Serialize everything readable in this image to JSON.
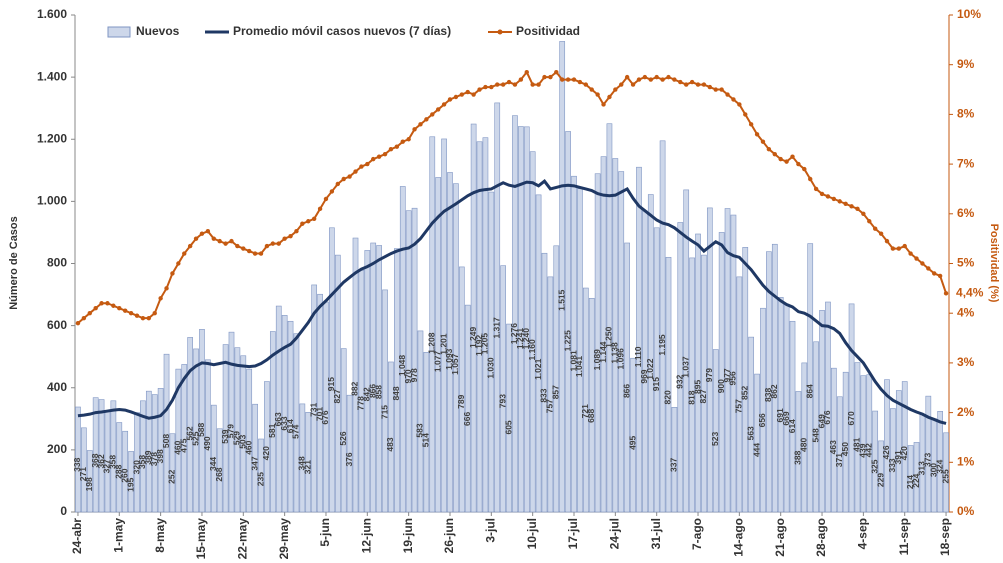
{
  "chart_data": {
    "type": "bar",
    "ylabel": "Número de Casos",
    "y2label": "Positividad (%)",
    "ylim": [
      0,
      1600
    ],
    "yticks": [
      0,
      200,
      400,
      600,
      800,
      {
        "value": 1000,
        "label": "1.000"
      },
      {
        "value": 1200,
        "label": "1.200"
      },
      {
        "value": 1400,
        "label": "1.400"
      },
      {
        "value": 1600,
        "label": "1.600"
      }
    ],
    "y2lim": [
      0,
      10
    ],
    "y2ticks": [
      {
        "value": 0,
        "label": "0%"
      },
      {
        "value": 1,
        "label": "1%"
      },
      {
        "value": 2,
        "label": "2%"
      },
      {
        "value": 3,
        "label": "3%"
      },
      {
        "value": 4,
        "label": "4%"
      },
      {
        "value": 5,
        "label": "5%"
      },
      {
        "value": 6,
        "label": "6%"
      },
      {
        "value": 7,
        "label": "7%"
      },
      {
        "value": 8,
        "label": "8%"
      },
      {
        "value": 9,
        "label": "9%"
      },
      {
        "value": 10,
        "label": "10%"
      }
    ],
    "grid": false,
    "categories": [
      "24-abr",
      null,
      null,
      null,
      null,
      null,
      null,
      "1-may",
      null,
      null,
      null,
      null,
      null,
      null,
      "8-may",
      null,
      null,
      null,
      null,
      null,
      null,
      "15-may",
      null,
      null,
      null,
      null,
      null,
      null,
      "22-may",
      null,
      null,
      null,
      null,
      null,
      null,
      "29-may",
      null,
      null,
      null,
      null,
      null,
      null,
      "5-jun",
      null,
      null,
      null,
      null,
      null,
      null,
      "12-jun",
      null,
      null,
      null,
      null,
      null,
      null,
      "19-jun",
      null,
      null,
      null,
      null,
      null,
      null,
      "26-jun",
      null,
      null,
      null,
      null,
      null,
      null,
      "3-jul",
      null,
      null,
      null,
      null,
      null,
      null,
      "10-jul",
      null,
      null,
      null,
      null,
      null,
      null,
      "17-jul",
      null,
      null,
      null,
      null,
      null,
      null,
      "24-jul",
      null,
      null,
      null,
      null,
      null,
      null,
      "31-jul",
      null,
      null,
      null,
      null,
      null,
      null,
      "7-ago",
      null,
      null,
      null,
      null,
      null,
      null,
      "14-ago",
      null,
      null,
      null,
      null,
      null,
      null,
      "21-ago",
      null,
      null,
      null,
      null,
      null,
      null,
      "28-ago",
      null,
      null,
      null,
      null,
      null,
      null,
      "4-sep",
      null,
      null,
      null,
      null,
      null,
      null,
      "11-sep",
      null,
      null,
      null,
      null,
      null,
      null,
      "18-sep"
    ],
    "series": [
      {
        "name": "Nuevos",
        "type": "bar",
        "color": "#cdd7ea",
        "stroke": "#7f95c3",
        "values": [
          338,
          271,
          198,
          368,
          362,
          327,
          358,
          288,
          260,
          195,
          320,
          358,
          389,
          378,
          398,
          508,
          252,
          460,
          475,
          562,
          525,
          588,
          490,
          344,
          268,
          539,
          579,
          529,
          503,
          460,
          347,
          235,
          420,
          581,
          663,
          633,
          614,
          574,
          348,
          321,
          731,
          701,
          676,
          915,
          827,
          526,
          376,
          882,
          778,
          842,
          866,
          858,
          715,
          483,
          848,
          1048,
          970,
          978,
          583,
          514,
          1208,
          1077,
          1201,
          1093,
          1057,
          789,
          666,
          1249,
          1192,
          1205,
          1030,
          1317,
          793,
          605,
          1276,
          1241,
          1240,
          1160,
          1021,
          833,
          757,
          857,
          1515,
          1225,
          1081,
          1041,
          721,
          688,
          1089,
          1144,
          1250,
          1138,
          1096,
          866,
          495,
          1110,
          969,
          1022,
          915,
          1195,
          820,
          337,
          932,
          1037,
          818,
          895,
          827,
          979,
          523,
          900,
          977,
          956,
          757,
          852,
          563,
          444,
          656,
          838,
          862,
          691,
          669,
          614,
          388,
          480,
          864,
          548,
          649,
          676,
          463,
          371,
          450,
          670,
          481,
          439,
          442,
          325,
          229,
          426,
          333,
          391,
          420,
          214,
          224,
          313,
          373,
          300,
          324,
          255
        ],
        "value_labels": [
          "338",
          "271",
          "198",
          "368",
          "362",
          "327",
          "358",
          "288",
          "260",
          "195",
          "320",
          "358",
          "389",
          "378",
          "398",
          "508",
          "252",
          "460",
          "475",
          "562",
          "525",
          "588",
          "490",
          "344",
          "268",
          "539",
          "579",
          "529",
          "503",
          "460",
          "347",
          "235",
          "420",
          "581",
          "663",
          "633",
          "614",
          "574",
          "348",
          "321",
          "731",
          "701",
          "676",
          "915",
          "827",
          "526",
          "376",
          "882",
          "778",
          "842",
          "866",
          "858",
          "715",
          "483",
          "848",
          "1.048",
          "970",
          "978",
          "583",
          "514",
          "1.208",
          "1.077",
          "1.201",
          "1.093",
          "1.057",
          "789",
          "666",
          "1.249",
          "1.192",
          "1.205",
          "1.030",
          "1.317",
          "793",
          "605",
          "1.276",
          "1.241",
          "1.240",
          "1.160",
          "1.021",
          "833",
          "757",
          "857",
          "1.515",
          "1.225",
          "1.081",
          "1.041",
          "721",
          "688",
          "1.089",
          "1.144",
          "1.250",
          "1.138",
          "1.096",
          "866",
          "495",
          "1.110",
          "969",
          "1.022",
          "915",
          "1.195",
          "820",
          "337",
          "932",
          "1.037",
          "818",
          "895",
          "827",
          "979",
          "523",
          "900",
          "977",
          "956",
          "757",
          "852",
          "563",
          "444",
          "656",
          "838",
          "862",
          "691",
          "669",
          "614",
          "388",
          "480",
          "864",
          "548",
          "649",
          "676",
          "463",
          "371",
          "450",
          "670",
          "481",
          "439",
          "442",
          "325",
          "229",
          "426",
          "333",
          "391",
          "420",
          "214",
          "224",
          "313",
          "373",
          "300",
          "324",
          "255"
        ]
      },
      {
        "name": "Promedio móvil casos nuevos (7 días)",
        "type": "line",
        "color": "#1f3864",
        "values": [
          310,
          312,
          315,
          320,
          322,
          325,
          328,
          330,
          328,
          322,
          315,
          308,
          302,
          305,
          310,
          330,
          360,
          400,
          430,
          455,
          470,
          480,
          478,
          474,
          478,
          482,
          476,
          472,
          470,
          468,
          470,
          478,
          490,
          505,
          518,
          530,
          540,
          560,
          585,
          610,
          640,
          662,
          680,
          700,
          720,
          740,
          755,
          770,
          782,
          790,
          800,
          812,
          822,
          832,
          840,
          846,
          850,
          862,
          880,
          905,
          930,
          950,
          968,
          980,
          992,
          1005,
          1018,
          1028,
          1035,
          1038,
          1040,
          1050,
          1060,
          1052,
          1048,
          1055,
          1062,
          1060,
          1050,
          1065,
          1040,
          1045,
          1050,
          1052,
          1050,
          1045,
          1040,
          1035,
          1025,
          1020,
          1018,
          1020,
          1030,
          1040,
          1010,
          985,
          970,
          955,
          940,
          930,
          925,
          915,
          900,
          885,
          872,
          860,
          840,
          855,
          870,
          860,
          835,
          825,
          820,
          800,
          780,
          755,
          730,
          710,
          695,
          680,
          668,
          660,
          645,
          640,
          630,
          615,
          600,
          598,
          590,
          575,
          545,
          520,
          500,
          480,
          450,
          420,
          395,
          375,
          360,
          350,
          340,
          330,
          322,
          315,
          305,
          298,
          290,
          285
        ]
      },
      {
        "name": "Positividad",
        "type": "line",
        "axis": "y2",
        "color": "#c55a11",
        "markers": true,
        "values": [
          3.8,
          3.9,
          4.0,
          4.1,
          4.2,
          4.2,
          4.15,
          4.1,
          4.05,
          4.0,
          3.95,
          3.9,
          3.9,
          4.0,
          4.3,
          4.5,
          4.8,
          5.0,
          5.2,
          5.35,
          5.5,
          5.6,
          5.65,
          5.5,
          5.45,
          5.4,
          5.45,
          5.35,
          5.3,
          5.25,
          5.2,
          5.2,
          5.35,
          5.4,
          5.4,
          5.5,
          5.55,
          5.65,
          5.8,
          5.85,
          5.9,
          6.1,
          6.3,
          6.45,
          6.6,
          6.7,
          6.75,
          6.85,
          6.95,
          7.0,
          7.1,
          7.15,
          7.2,
          7.3,
          7.35,
          7.45,
          7.5,
          7.7,
          7.8,
          7.9,
          8.0,
          8.1,
          8.2,
          8.3,
          8.35,
          8.4,
          8.45,
          8.4,
          8.5,
          8.55,
          8.55,
          8.6,
          8.6,
          8.65,
          8.6,
          8.7,
          8.85,
          8.6,
          8.6,
          8.75,
          8.75,
          8.85,
          8.7,
          8.7,
          8.7,
          8.65,
          8.6,
          8.5,
          8.4,
          8.2,
          8.35,
          8.5,
          8.6,
          8.75,
          8.6,
          8.7,
          8.75,
          8.7,
          8.75,
          8.7,
          8.75,
          8.7,
          8.65,
          8.6,
          8.65,
          8.6,
          8.6,
          8.55,
          8.5,
          8.5,
          8.4,
          8.3,
          8.2,
          8.0,
          7.8,
          7.6,
          7.45,
          7.3,
          7.2,
          7.1,
          7.05,
          7.15,
          7.0,
          6.9,
          6.7,
          6.5,
          6.4,
          6.35,
          6.3,
          6.25,
          6.2,
          6.15,
          6.1,
          6.0,
          5.85,
          5.7,
          5.6,
          5.45,
          5.3,
          5.3,
          5.35,
          5.2,
          5.1,
          5.0,
          4.9,
          4.8,
          4.75,
          4.4
        ],
        "value_labels": [
          null,
          null,
          null,
          null,
          null,
          null,
          null,
          null,
          null,
          null,
          null,
          null,
          null,
          null,
          null,
          null,
          null,
          null,
          null,
          null,
          null,
          null,
          null,
          null,
          null,
          null,
          null,
          null,
          null,
          null,
          null,
          null,
          null,
          null,
          null,
          null,
          null,
          null,
          null,
          null,
          null,
          null,
          null,
          null,
          null,
          null,
          null,
          null,
          null,
          null,
          null,
          null,
          null,
          null,
          null,
          null,
          null,
          null,
          null,
          null,
          null,
          null,
          null,
          null,
          null,
          null,
          null,
          null,
          null,
          null,
          null,
          null,
          null,
          null,
          null,
          null,
          null,
          null,
          null,
          null,
          null,
          null,
          null,
          null,
          null,
          null,
          null,
          null,
          null,
          null,
          null,
          null,
          null,
          null,
          null,
          null,
          null,
          null,
          null,
          null,
          null,
          null,
          null,
          null,
          null,
          null,
          null,
          null,
          null,
          null,
          null,
          null,
          null,
          null,
          null,
          null,
          null,
          null,
          null,
          null,
          null,
          null,
          null,
          null,
          null,
          null,
          null,
          null,
          null,
          null,
          null,
          null,
          null,
          null,
          null,
          null,
          null,
          null,
          null,
          null,
          null,
          null,
          null,
          null,
          null,
          null,
          null,
          "4,4%"
        ]
      }
    ]
  }
}
